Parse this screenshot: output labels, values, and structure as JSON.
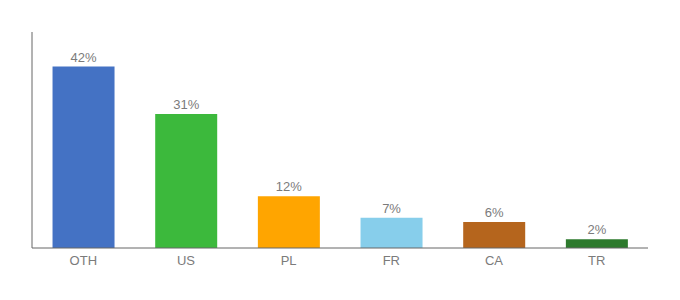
{
  "chart_data": {
    "type": "bar",
    "categories": [
      "OTH",
      "US",
      "PL",
      "FR",
      "CA",
      "TR"
    ],
    "values": [
      42,
      31,
      12,
      7,
      6,
      2
    ],
    "value_labels": [
      "42%",
      "31%",
      "12%",
      "7%",
      "6%",
      "2%"
    ],
    "colors": [
      "#4472C4",
      "#3CB93C",
      "#FFA500",
      "#87CEEB",
      "#B5651D",
      "#2D7A2D"
    ],
    "ylim": [
      0,
      50
    ],
    "data_labels": true,
    "tick_labels": "x",
    "grid": false
  }
}
